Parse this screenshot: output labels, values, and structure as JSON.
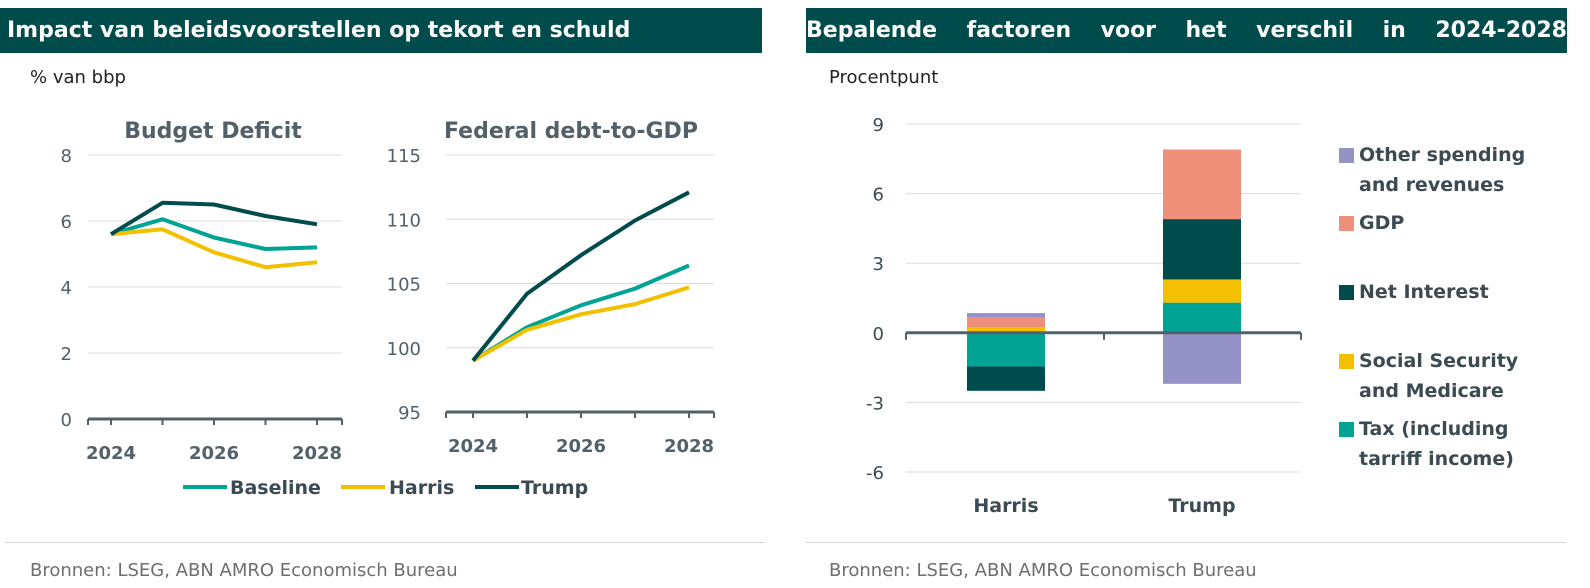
{
  "left": {
    "banner": "Impact van beleidsvoorstellen op tekort en schuld",
    "unit": "% van bbp",
    "source": "Bronnen:  LSEG, ABN AMRO Economisch Bureau",
    "legend": [
      {
        "name": "Baseline",
        "color": "#00a394"
      },
      {
        "name": "Harris",
        "color": "#f3c000"
      },
      {
        "name": "Trump",
        "color": "#004c4c"
      }
    ]
  },
  "right": {
    "banner_words": [
      "Bepalende",
      "factoren",
      "voor",
      "het",
      "verschil",
      "in",
      "2024-2028"
    ],
    "unit": "Procentpunt",
    "source": "Bronnen: LSEG, ABN AMRO Economisch Bureau",
    "legend": [
      {
        "name_lines": [
          "Other spending",
          "and revenues"
        ],
        "color": "#9592c8"
      },
      {
        "name_lines": [
          "GDP"
        ],
        "color": "#f0907a"
      },
      {
        "name_lines": [
          "Net Interest"
        ],
        "color": "#004c4c"
      },
      {
        "name_lines": [
          "Social Security",
          "and Medicare"
        ],
        "color": "#f3c000"
      },
      {
        "name_lines": [
          "Tax (including",
          "tarriff income)"
        ],
        "color": "#00a394"
      }
    ]
  },
  "chart_data": [
    {
      "type": "line",
      "title": "Budget Deficit",
      "x": [
        2024,
        2025,
        2026,
        2027,
        2028
      ],
      "xticks": [
        "2024",
        "2026",
        "2028"
      ],
      "ylim": [
        0,
        8
      ],
      "yticks": [
        "0",
        "2",
        "4",
        "6",
        "8"
      ],
      "series": [
        {
          "name": "Baseline",
          "color": "#00a394",
          "values": [
            5.6,
            6.05,
            5.5,
            5.15,
            5.2
          ]
        },
        {
          "name": "Harris",
          "color": "#f3c000",
          "values": [
            5.6,
            5.75,
            5.05,
            4.6,
            4.75
          ]
        },
        {
          "name": "Trump",
          "color": "#004c4c",
          "values": [
            5.6,
            6.55,
            6.5,
            6.15,
            5.9
          ]
        }
      ]
    },
    {
      "type": "line",
      "title": "Federal debt-to-GDP",
      "x": [
        2024,
        2025,
        2026,
        2027,
        2028
      ],
      "xticks": [
        "2024",
        "2026",
        "2028"
      ],
      "ylim": [
        95,
        115
      ],
      "yticks": [
        "95",
        "100",
        "105",
        "110",
        "115"
      ],
      "series": [
        {
          "name": "Baseline",
          "color": "#00a394",
          "values": [
            99.0,
            101.6,
            103.3,
            104.6,
            106.4
          ]
        },
        {
          "name": "Harris",
          "color": "#f3c000",
          "values": [
            99.0,
            101.4,
            102.6,
            103.4,
            104.7
          ]
        },
        {
          "name": "Trump",
          "color": "#004c4c",
          "values": [
            99.0,
            104.2,
            107.2,
            109.9,
            112.1
          ]
        }
      ]
    },
    {
      "type": "bar",
      "stacked": true,
      "categories": [
        "Harris",
        "Trump"
      ],
      "ylim": [
        -6,
        9
      ],
      "yticks": [
        "9",
        "6",
        "3",
        "0",
        "-3",
        "-6"
      ],
      "series": [
        {
          "name": "Tax (including tarriff income)",
          "color": "#00a394",
          "values": [
            -1.45,
            1.3
          ]
        },
        {
          "name": "Social Security and Medicare",
          "color": "#f3c000",
          "values": [
            0.25,
            1.0
          ]
        },
        {
          "name": "Net Interest",
          "color": "#004c4c",
          "values": [
            -1.05,
            2.6
          ]
        },
        {
          "name": "GDP",
          "color": "#f0907a",
          "values": [
            0.4,
            3.0
          ]
        },
        {
          "name": "Other spending and revenues",
          "color": "#9592c8",
          "values": [
            0.2,
            -2.2
          ]
        }
      ]
    }
  ]
}
